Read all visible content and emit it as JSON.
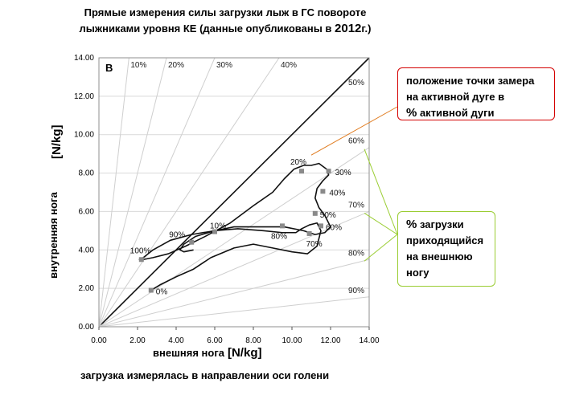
{
  "title_line1": "Прямые измерения силы загрузки лыж в ГС повороте",
  "title_line2": "лыжниками уровня КЕ (данные опубликованы в ",
  "title_year": "2012",
  "title_suffix": "г.)",
  "footer": "загрузка измерялась в направлении оси голени",
  "box_red": {
    "line1": "положение точки замера",
    "line2": "на  активной дуге в",
    "pct": "%",
    "line3": " активной дуги"
  },
  "box_green": {
    "pct": "%",
    "line1": " загрузки",
    "line2": "приходящийся",
    "line3": "на внешнюю",
    "line4": "ногу"
  },
  "chart_data": {
    "type": "line",
    "panel_label": "B",
    "xlabel": "внешняя нога",
    "xlabel_unit": "[N/kg]",
    "ylabel": "внутренняя нога",
    "ylabel_unit": "[N/kg]",
    "xlim": [
      0,
      14
    ],
    "ylim": [
      0,
      14
    ],
    "ticks": [
      "0.00",
      "2.00",
      "4.00",
      "6.00",
      "8.00",
      "10.00",
      "12.00",
      "14.00"
    ],
    "ray_labels": [
      "10%",
      "20%",
      "30%",
      "40%",
      "50%",
      "60%",
      "70%",
      "80%",
      "90%"
    ],
    "series": [
      {
        "x": [
          2.7,
          3.2,
          4.0,
          4.9,
          5.8,
          7.0,
          8.0,
          9.0,
          10.0,
          10.8,
          11.3,
          11.5,
          11.3,
          10.9,
          10.5,
          10.2,
          9.5,
          8.5,
          7.2,
          6.0,
          4.8,
          3.7,
          2.8,
          2.3,
          2.1,
          2.3,
          2.8,
          3.6,
          4.5,
          5.5,
          6.8,
          8.0,
          9.0,
          9.6,
          10.1,
          10.6,
          11.0,
          11.4,
          11.8,
          11.9,
          11.6,
          11.3,
          11.2,
          11.4,
          11.7,
          12.0,
          11.7,
          11.2,
          10.6,
          9.6,
          8.8,
          8.0,
          7.0,
          6.0,
          5.0,
          4.4,
          4.2,
          4.4,
          4.9
        ],
        "y": [
          1.9,
          2.2,
          2.6,
          3.0,
          3.6,
          4.1,
          4.3,
          4.1,
          3.9,
          3.8,
          4.2,
          5.0,
          5.4,
          5.3,
          5.1,
          4.9,
          4.9,
          5.0,
          5.1,
          5.0,
          4.8,
          4.5,
          4.0,
          3.6,
          3.5,
          3.5,
          3.6,
          3.8,
          4.2,
          4.7,
          5.4,
          6.3,
          7.0,
          7.7,
          8.2,
          8.4,
          8.4,
          8.5,
          8.2,
          7.9,
          7.6,
          7.2,
          6.7,
          6.2,
          5.8,
          5.2,
          4.9,
          4.8,
          5.0,
          5.2,
          5.2,
          5.2,
          5.2,
          5.0,
          4.7,
          4.3,
          4.0,
          3.9,
          4.0
        ]
      }
    ],
    "annotations": [
      {
        "label": "0%",
        "x": 2.7,
        "y": 1.9
      },
      {
        "label": "10%",
        "x": 6.0,
        "y": 4.95
      },
      {
        "label": "20%",
        "x": 10.5,
        "y": 8.1
      },
      {
        "label": "30%",
        "x": 11.9,
        "y": 8.1
      },
      {
        "label": "40%",
        "x": 11.6,
        "y": 7.05
      },
      {
        "label": "50%",
        "x": 11.2,
        "y": 5.9
      },
      {
        "label": "60%",
        "x": 11.5,
        "y": 5.25
      },
      {
        "label": "70%",
        "x": 10.9,
        "y": 4.85
      },
      {
        "label": "80%",
        "x": 9.5,
        "y": 5.25
      },
      {
        "label": "90%",
        "x": 4.8,
        "y": 4.4
      },
      {
        "label": "100%",
        "x": 2.2,
        "y": 3.5
      }
    ]
  }
}
